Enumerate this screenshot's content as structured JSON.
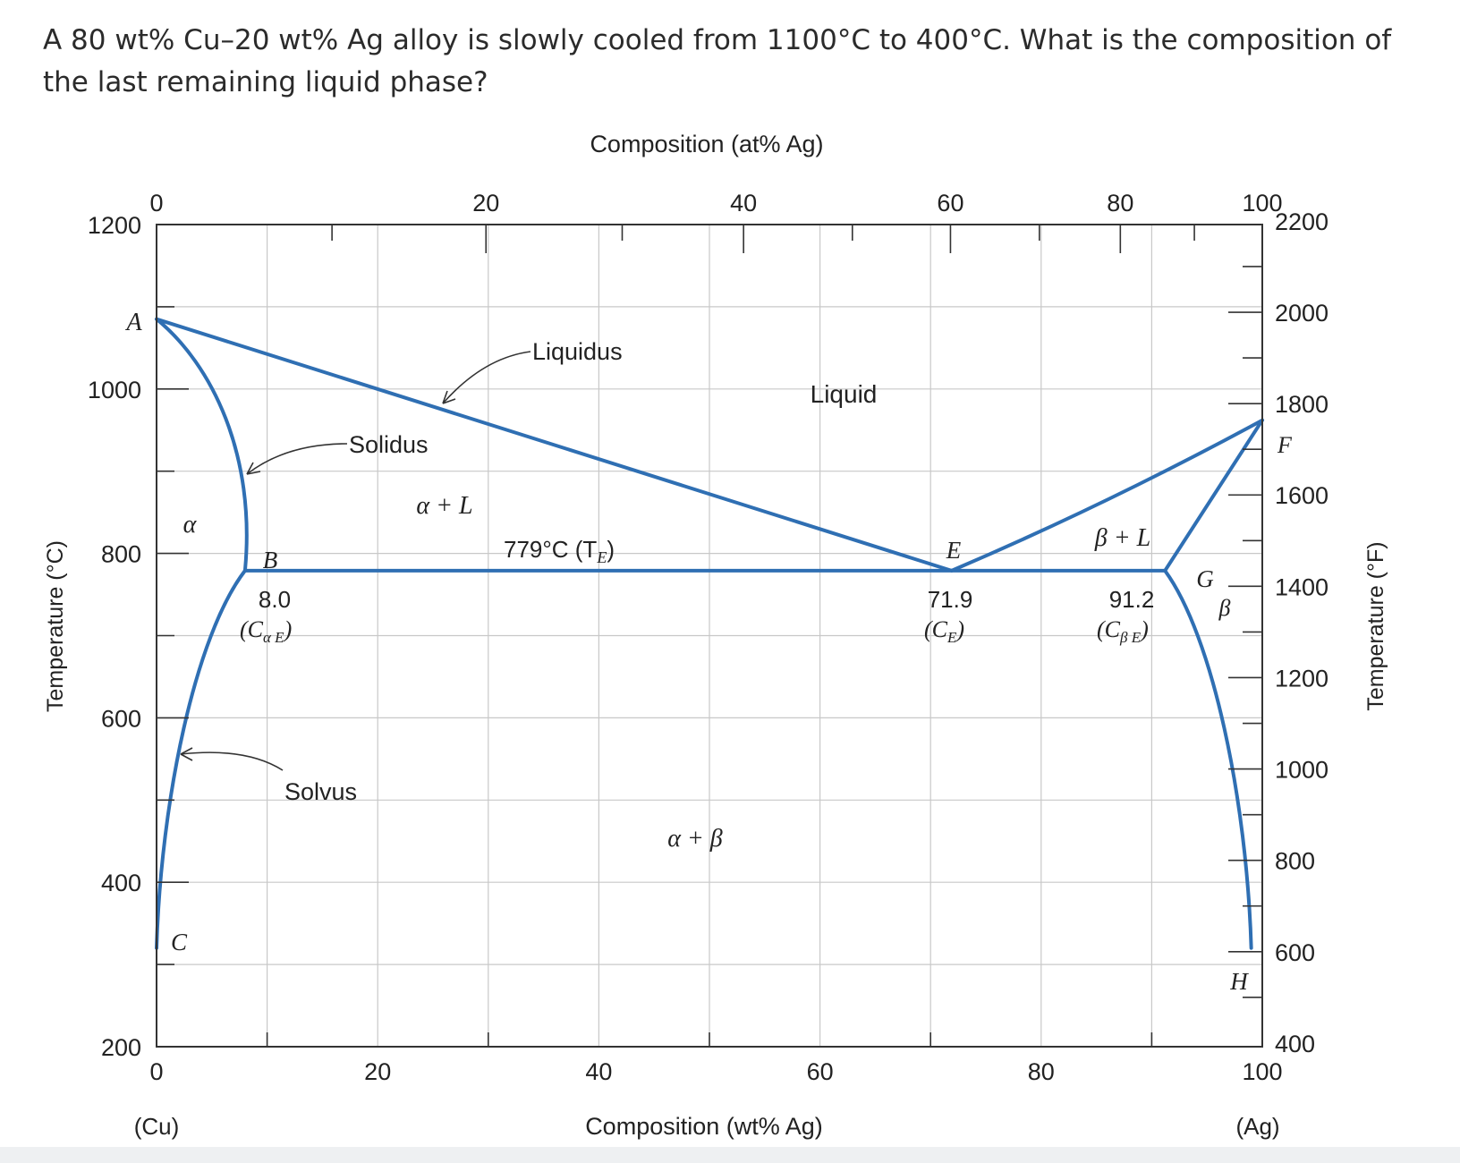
{
  "question": "A 80 wt% Cu–20 wt% Ag alloy is slowly cooled from 1100°C to 400°C. What is the composition of the last remaining liquid phase?",
  "chart_data": {
    "type": "phase-diagram",
    "title_top": "Composition (at% Ag)",
    "xlabel": "Composition (wt% Ag)",
    "ylabel_left": "Temperature (°C)",
    "ylabel_right": "Temperature (°F)",
    "x_ticks_wt": [
      "0",
      "20",
      "40",
      "60",
      "80",
      "100"
    ],
    "x_ticks_at": [
      "0",
      "20",
      "40",
      "60",
      "80",
      "100"
    ],
    "y_ticks_c": [
      "1200",
      "1000",
      "800",
      "600",
      "400",
      "200"
    ],
    "y_ticks_f": [
      "2200",
      "2000",
      "1800",
      "1600",
      "1400",
      "1200",
      "1000",
      "800",
      "600",
      "400"
    ],
    "end_labels": {
      "left": "(Cu)",
      "right": "(Ag)"
    },
    "xlim_wt": [
      0,
      100
    ],
    "ylim_c": [
      200,
      1200
    ],
    "ylim_f": [
      392,
      2192
    ],
    "melting_point_cu_c": 1085,
    "melting_point_ag_c": 962,
    "eutectic": {
      "temperature_c": 779,
      "composition_wt": 71.9,
      "alpha_limit_wt": 8.0,
      "beta_limit_wt": 91.2
    },
    "solvus_low_point_wt": {
      "alpha_wt": 0.0,
      "beta_wt": 99.0,
      "temperature_c": 320
    },
    "region_labels": {
      "liquid": "Liquid",
      "alpha": "α",
      "beta": "β",
      "alpha_liquid": "α + L",
      "beta_liquid": "β + L",
      "alpha_beta": "α + β"
    },
    "line_labels": {
      "liquidus": "Liquidus",
      "solidus": "Solidus",
      "solvus": "Solvus",
      "eutectic_temp": "779°C (T",
      "eutectic_temp_sub": "E",
      "eutectic_temp_close": ")"
    },
    "point_labels": {
      "A": "A",
      "B": "B",
      "C": "C",
      "E": "E",
      "F": "F",
      "G": "G",
      "H": "H"
    },
    "value_labels": {
      "alpha_e": "8.0",
      "alpha_e_sym": "(C",
      "alpha_e_sub": "α E",
      "alpha_e_close": ")",
      "e": "71.9",
      "e_sym": "(C",
      "e_sub": "E",
      "e_close": ")",
      "beta_e": "91.2",
      "beta_e_sym": "(C",
      "beta_e_sub": "β E",
      "beta_e_close": ")"
    },
    "colors": {
      "curve": "#2f6fb3",
      "grid": "#c8c8c8",
      "frame": "#333333"
    }
  }
}
